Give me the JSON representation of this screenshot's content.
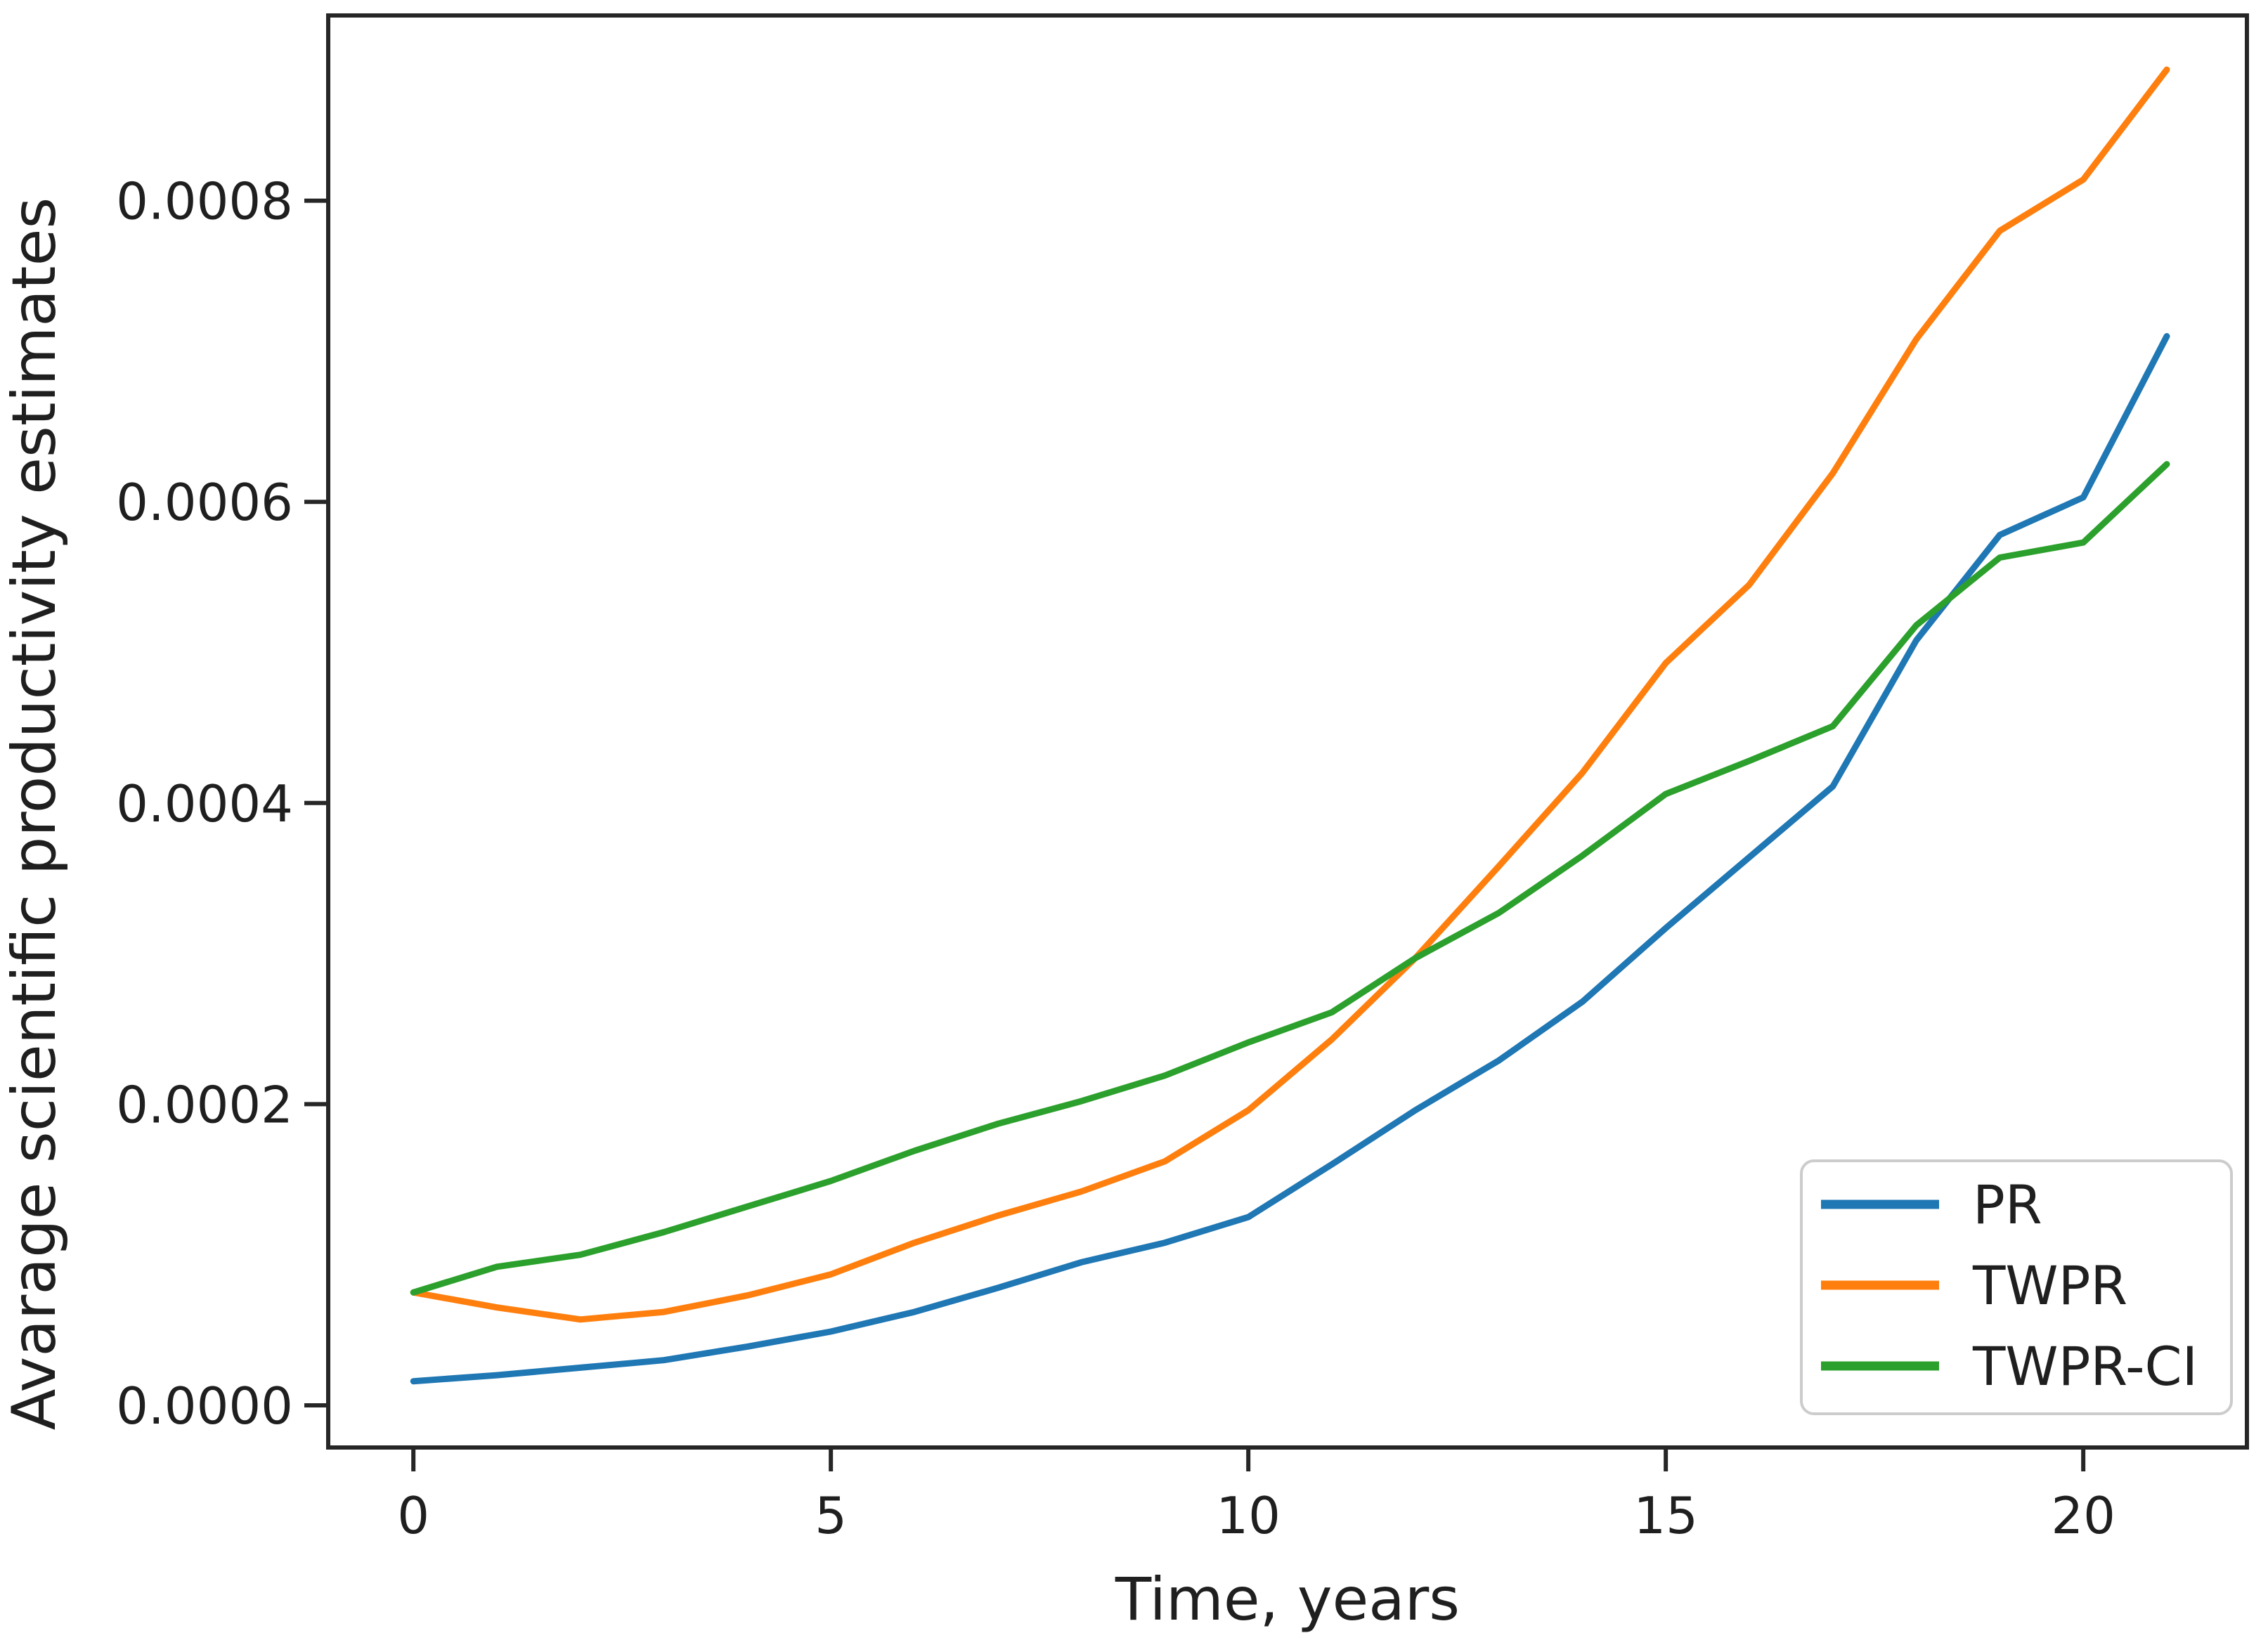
{
  "chart_data": {
    "type": "line",
    "title": "",
    "xlabel": "Time, years",
    "ylabel": "Avarage scientific productivity estimates",
    "x": [
      0,
      1,
      2,
      3,
      4,
      5,
      6,
      7,
      8,
      9,
      10,
      11,
      12,
      13,
      14,
      15,
      16,
      17,
      18,
      19,
      20,
      21
    ],
    "series": [
      {
        "name": "PR",
        "color": "#1f77b4",
        "values": [
          1.6e-05,
          2e-05,
          2.5e-05,
          3e-05,
          3.9e-05,
          4.9e-05,
          6.2e-05,
          7.8e-05,
          9.5e-05,
          0.000108,
          0.000125,
          0.00016,
          0.000196,
          0.000229,
          0.000268,
          0.000317,
          0.000364,
          0.000411,
          0.000508,
          0.000578,
          0.000603,
          0.00071
        ]
      },
      {
        "name": "TWPR",
        "color": "#ff7f0e",
        "values": [
          7.5e-05,
          6.5e-05,
          5.7e-05,
          6.2e-05,
          7.3e-05,
          8.7e-05,
          0.000108,
          0.000126,
          0.000142,
          0.000162,
          0.000196,
          0.000243,
          0.000297,
          0.000358,
          0.00042,
          0.000493,
          0.000545,
          0.000619,
          0.000708,
          0.00078,
          0.000814,
          0.000887
        ]
      },
      {
        "name": "TWPR-CI",
        "color": "#2ca02c",
        "values": [
          7.5e-05,
          9.2e-05,
          0.0001,
          0.000115,
          0.000132,
          0.000149,
          0.000169,
          0.000187,
          0.000202,
          0.000219,
          0.000241,
          0.000261,
          0.000297,
          0.000327,
          0.000365,
          0.000406,
          0.000428,
          0.000451,
          0.000518,
          0.000563,
          0.000573,
          0.000625
        ]
      }
    ],
    "xlim": [
      -1.02,
      21.96
    ],
    "ylim": [
      -2.8e-05,
      0.000923
    ],
    "xticks": {
      "values": [
        0,
        5,
        10,
        15,
        20
      ],
      "labels": [
        "0",
        "5",
        "10",
        "15",
        "20"
      ]
    },
    "yticks": {
      "values": [
        0.0,
        0.0002,
        0.0004,
        0.0006,
        0.0008
      ],
      "labels": [
        "0.0000",
        "0.0002",
        "0.0004",
        "0.0006",
        "0.0008"
      ]
    },
    "grid": false,
    "legend": {
      "position": "lower right",
      "entries": [
        "PR",
        "TWPR",
        "TWPR-CI"
      ]
    }
  },
  "style": {
    "background": "#ffffff",
    "spine_color": "#262626",
    "tick_color": "#262626",
    "text_color": "#1f1f1f",
    "legend_border_color": "#cccccc",
    "legend_background": "#ffffff"
  }
}
